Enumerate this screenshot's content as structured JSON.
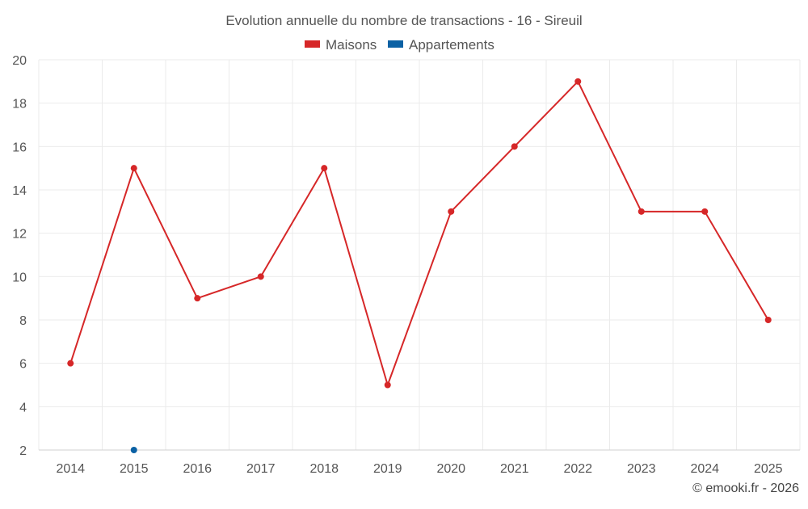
{
  "chart_data": {
    "type": "line",
    "title": "Evolution annuelle du nombre de transactions - 16 - Sireuil",
    "categories": [
      "2014",
      "2015",
      "2016",
      "2017",
      "2018",
      "2019",
      "2020",
      "2021",
      "2022",
      "2023",
      "2024",
      "2025"
    ],
    "series": [
      {
        "name": "Maisons",
        "color": "#d62728",
        "values": [
          6,
          15,
          9,
          10,
          15,
          5,
          13,
          16,
          19,
          13,
          13,
          8
        ]
      },
      {
        "name": "Appartements",
        "color": "#0b61a4",
        "values": [
          null,
          2,
          null,
          null,
          null,
          null,
          null,
          null,
          null,
          null,
          null,
          null
        ]
      }
    ],
    "ylim": [
      2,
      20
    ],
    "yticks": [
      2,
      4,
      6,
      8,
      10,
      12,
      14,
      16,
      18,
      20
    ],
    "grid": true,
    "legend": "top-center",
    "xlabel": "",
    "ylabel": ""
  },
  "credit": "© emooki.fr - 2026"
}
